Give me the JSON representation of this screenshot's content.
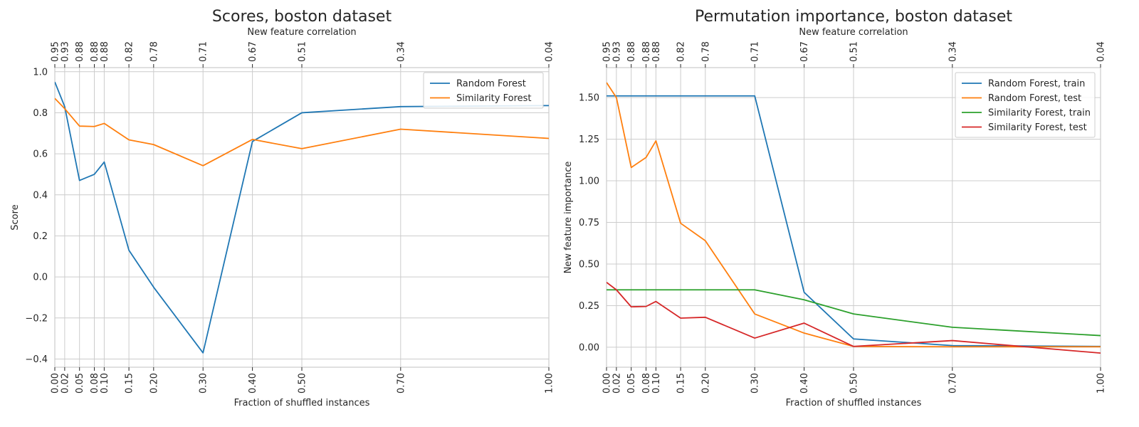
{
  "chart_data": [
    {
      "type": "line",
      "title": "Scores, boston dataset",
      "xlabel": "Fraction of shuffled instances",
      "ylabel": "Score",
      "top_xlabel": "New feature correlation",
      "x": [
        0.0,
        0.02,
        0.05,
        0.08,
        0.1,
        0.15,
        0.2,
        0.3,
        0.4,
        0.5,
        0.7,
        1.0
      ],
      "x_tick_labels": [
        "0.00",
        "0.02",
        "0.05",
        "0.08",
        "0.10",
        "0.15",
        "0.20",
        "0.30",
        "0.40",
        "0.50",
        "0.70",
        "1.00"
      ],
      "top_tick_labels": [
        "0.95",
        "0.93",
        "0.88",
        "0.88",
        "0.88",
        "0.82",
        "0.78",
        "0.71",
        "0.67",
        "0.51",
        "0.34",
        "0.04"
      ],
      "xlim": [
        0,
        1
      ],
      "ylim": [
        -0.44,
        1.02
      ],
      "y_ticks": [
        -0.4,
        -0.2,
        0.0,
        0.2,
        0.4,
        0.6,
        0.8,
        1.0
      ],
      "y_tick_labels": [
        "−0.4",
        "−0.2",
        "0.0",
        "0.2",
        "0.4",
        "0.6",
        "0.8",
        "1.0"
      ],
      "grid": true,
      "legend_position": "top-right",
      "series": [
        {
          "name": "Random Forest",
          "color": "#1f77b4",
          "values": [
            0.95,
            0.83,
            0.47,
            0.5,
            0.56,
            0.13,
            -0.05,
            -0.37,
            0.66,
            0.8,
            0.83,
            0.835
          ]
        },
        {
          "name": "Similarity Forest",
          "color": "#ff7f0e",
          "values": [
            0.87,
            0.82,
            0.735,
            0.733,
            0.748,
            0.668,
            0.645,
            0.542,
            0.67,
            0.625,
            0.72,
            0.675
          ]
        }
      ]
    },
    {
      "type": "line",
      "title": "Permutation importance, boston dataset",
      "xlabel": "Fraction of shuffled instances",
      "ylabel": "New feature importance",
      "top_xlabel": "New feature correlation",
      "x": [
        0.0,
        0.02,
        0.05,
        0.08,
        0.1,
        0.15,
        0.2,
        0.3,
        0.4,
        0.5,
        0.7,
        1.0
      ],
      "x_tick_labels": [
        "0.00",
        "0.02",
        "0.05",
        "0.08",
        "0.10",
        "0.15",
        "0.20",
        "0.30",
        "0.40",
        "0.50",
        "0.70",
        "1.00"
      ],
      "top_tick_labels": [
        "0.95",
        "0.93",
        "0.88",
        "0.88",
        "0.88",
        "0.82",
        "0.78",
        "0.71",
        "0.67",
        "0.51",
        "0.34",
        "0.04"
      ],
      "xlim": [
        0,
        1
      ],
      "ylim": [
        -0.12,
        1.68
      ],
      "y_ticks": [
        0.0,
        0.25,
        0.5,
        0.75,
        1.0,
        1.25,
        1.5
      ],
      "y_tick_labels": [
        "0.00",
        "0.25",
        "0.50",
        "0.75",
        "1.00",
        "1.25",
        "1.50"
      ],
      "grid": true,
      "legend_position": "top-right",
      "series": [
        {
          "name": "Random Forest, train",
          "color": "#1f77b4",
          "values": [
            1.51,
            1.51,
            1.51,
            1.51,
            1.51,
            1.51,
            1.51,
            1.51,
            0.33,
            0.05,
            0.01,
            0.005
          ]
        },
        {
          "name": "Random Forest, test",
          "color": "#ff7f0e",
          "values": [
            1.59,
            1.5,
            1.08,
            1.14,
            1.24,
            0.745,
            0.64,
            0.2,
            0.085,
            0.005,
            0.003,
            0.003
          ]
        },
        {
          "name": "Similarity Forest, train",
          "color": "#2ca02c",
          "values": [
            0.345,
            0.345,
            0.345,
            0.345,
            0.345,
            0.345,
            0.345,
            0.345,
            0.285,
            0.2,
            0.12,
            0.07
          ]
        },
        {
          "name": "Similarity Forest, test",
          "color": "#d62728",
          "values": [
            0.39,
            0.345,
            0.243,
            0.245,
            0.275,
            0.175,
            0.18,
            0.055,
            0.145,
            0.005,
            0.04,
            -0.035
          ]
        }
      ]
    }
  ]
}
